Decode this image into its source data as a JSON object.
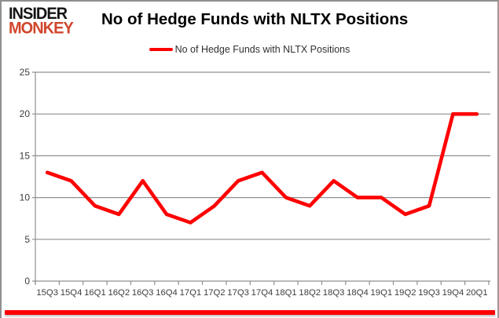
{
  "logo": {
    "line1": "INSIDER",
    "line2": "MONKEY"
  },
  "header": {
    "title": "No of Hedge Funds with NLTX Positions"
  },
  "legend": {
    "label": "No of Hedge Funds with NLTX Positions"
  },
  "colors": {
    "series_line": "#ff0000",
    "gridline": "#8f8f8f",
    "axis_text": "#3d3d3d",
    "logo_black": "#151515",
    "logo_red": "#d0462c",
    "accent_bar": "#ff0000"
  },
  "chart_data": {
    "type": "line",
    "title": "No of Hedge Funds with NLTX Positions",
    "categories": [
      "15Q3",
      "15Q4",
      "16Q1",
      "16Q2",
      "16Q3",
      "16Q4",
      "17Q1",
      "17Q2",
      "17Q3",
      "17Q4",
      "18Q1",
      "18Q2",
      "18Q3",
      "18Q4",
      "19Q1",
      "19Q2",
      "19Q3",
      "19Q4",
      "20Q1"
    ],
    "values": [
      13,
      12,
      9,
      8,
      12,
      8,
      7,
      9,
      12,
      13,
      10,
      9,
      12,
      10,
      10,
      8,
      9,
      20,
      20
    ],
    "series_name": "No of Hedge Funds with NLTX Positions",
    "xlabel": "",
    "ylabel": "",
    "ylim": [
      0,
      25
    ],
    "ytick_step": 5,
    "grid": true,
    "legend_position": "top-center"
  }
}
